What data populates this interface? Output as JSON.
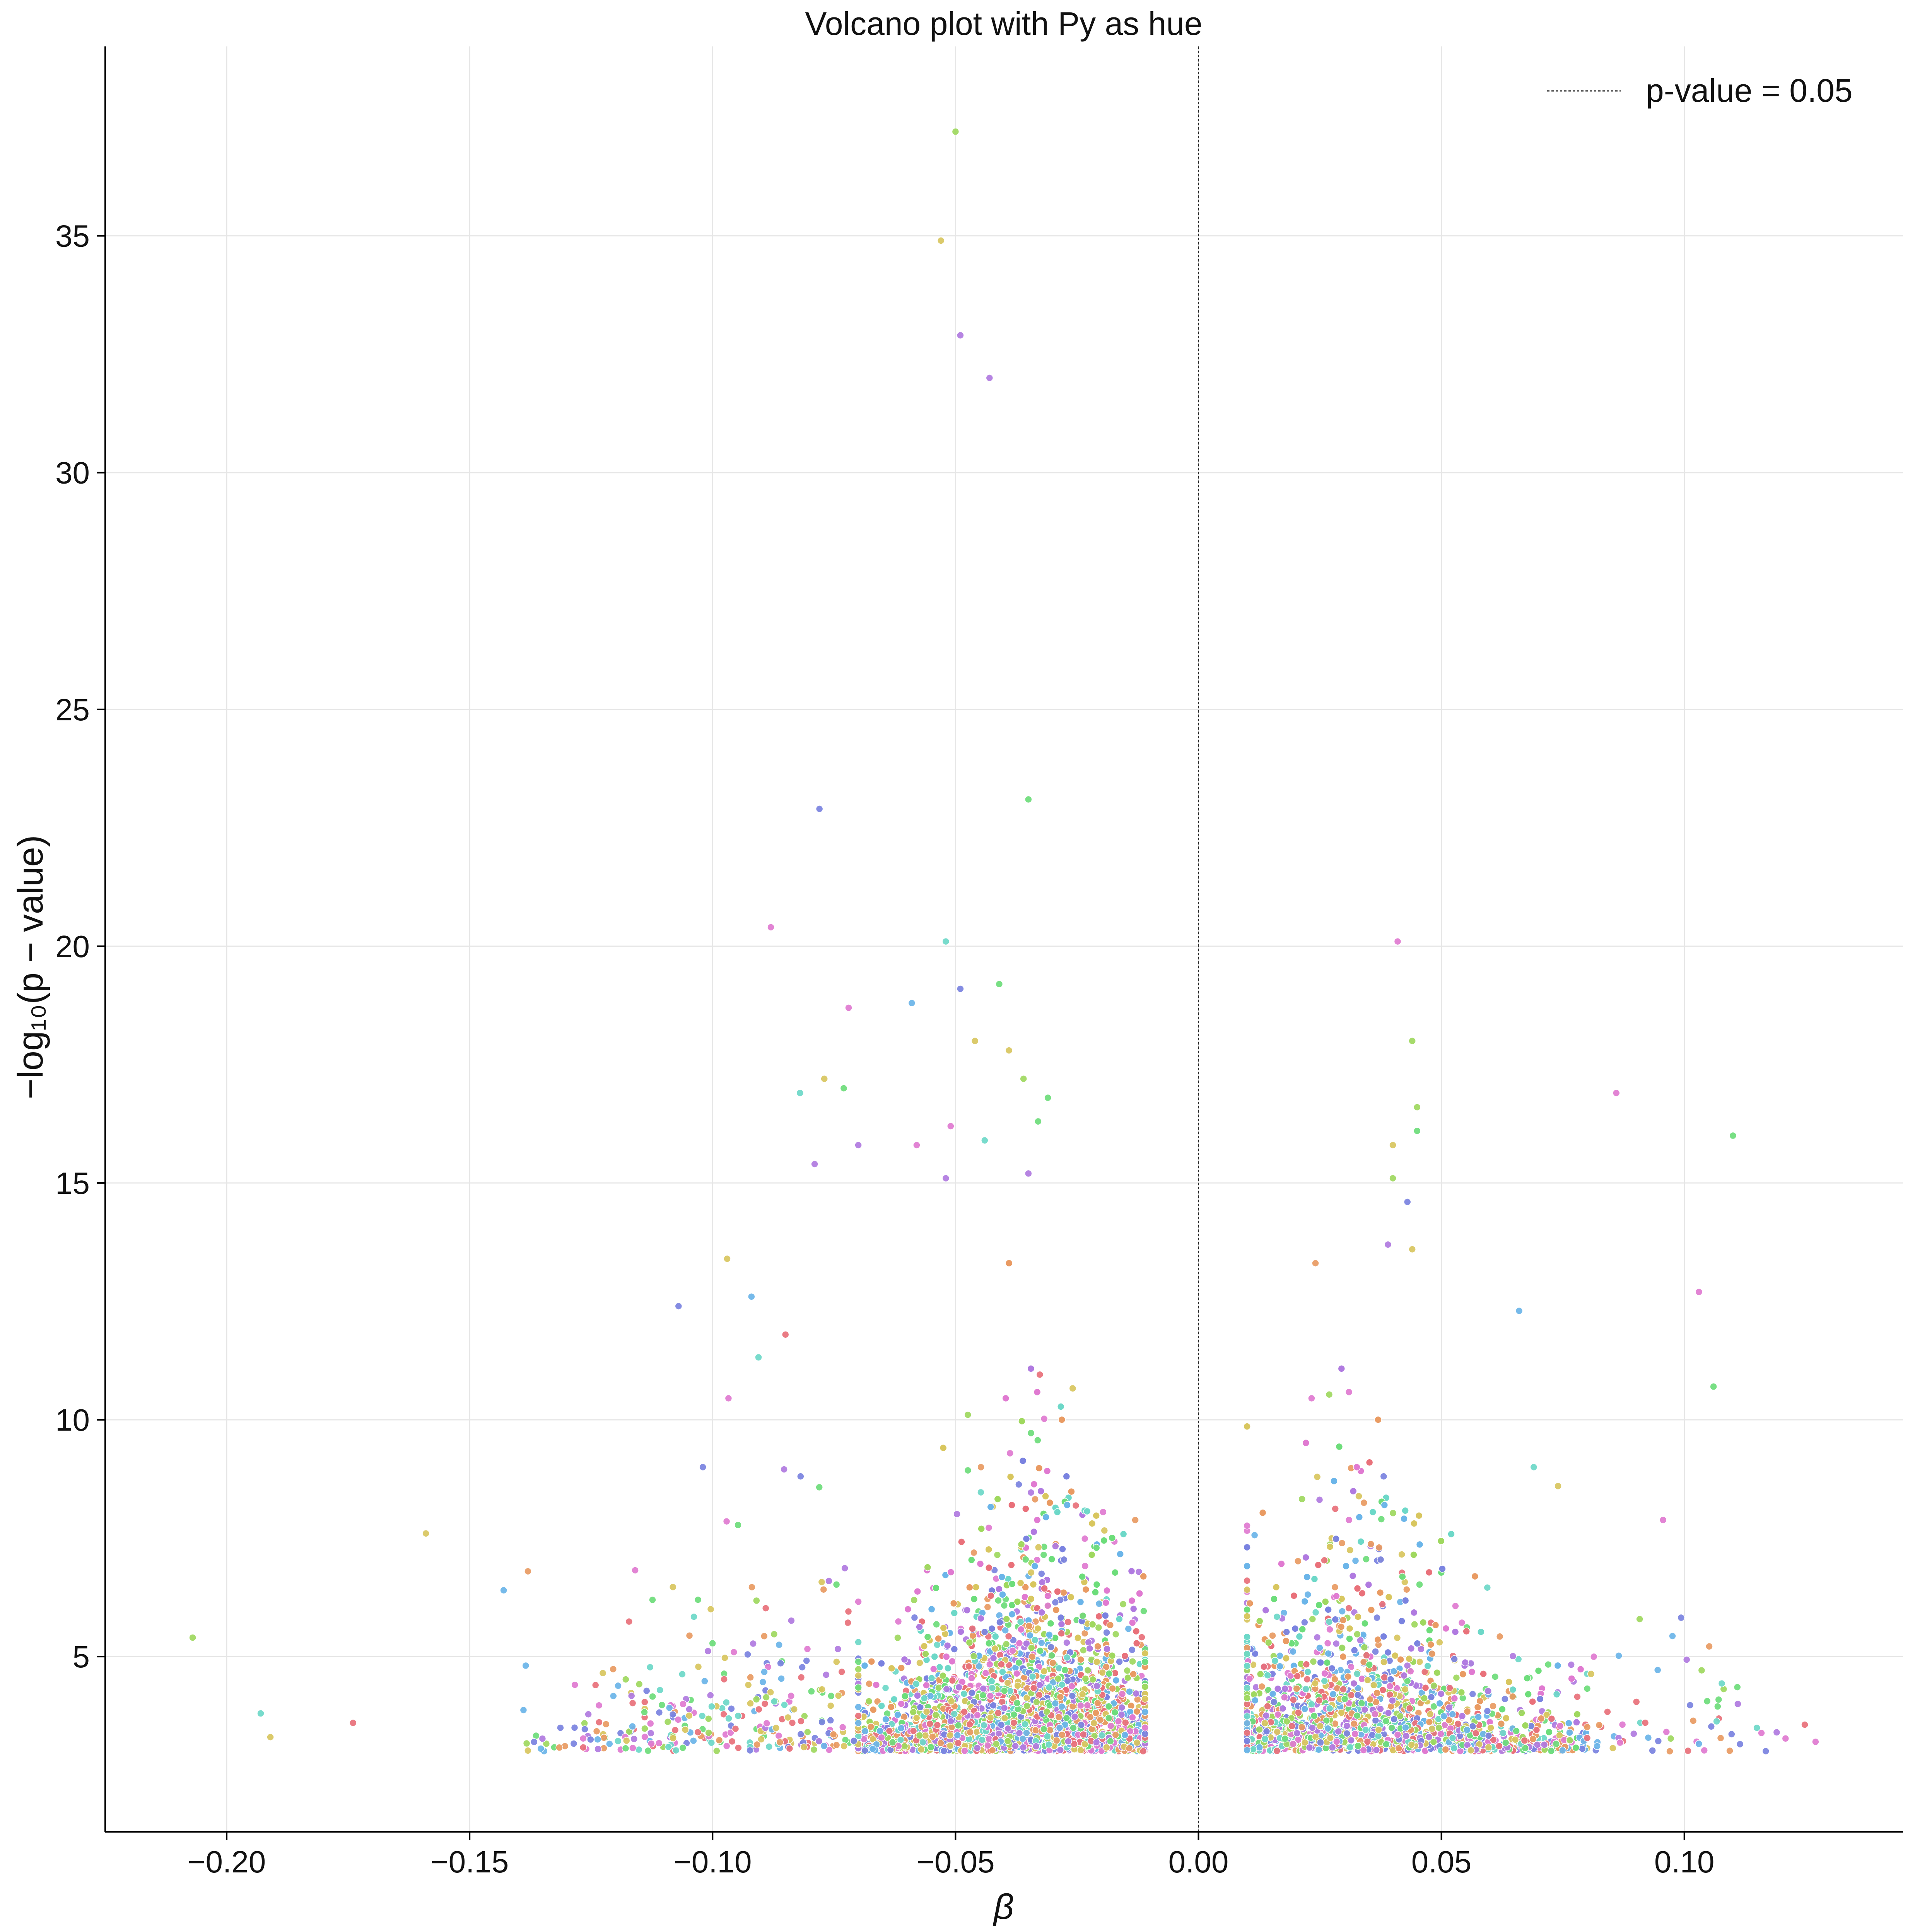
{
  "chart_data": {
    "type": "scatter",
    "title": "Volcano plot with Py as hue",
    "xlabel": "β",
    "ylabel": "−log₁₀(p − value)",
    "xlim": [
      -0.225,
      0.145
    ],
    "ylim": [
      1.3,
      39.0
    ],
    "x_ticks": [
      -0.2,
      -0.15,
      -0.1,
      -0.05,
      0.0,
      0.05,
      0.1
    ],
    "x_tick_labels": [
      "−0.20",
      "−0.15",
      "−0.10",
      "−0.05",
      "0.00",
      "0.05",
      "0.10"
    ],
    "y_ticks": [
      5,
      10,
      15,
      20,
      25,
      30,
      35
    ],
    "y_tick_labels": [
      "5",
      "10",
      "15",
      "20",
      "25",
      "30",
      "35"
    ],
    "grid": true,
    "legend": {
      "position": "top-right",
      "entries": [
        {
          "label": "p-value = 0.05",
          "style": "dotted-line"
        }
      ]
    },
    "reference_line": {
      "orientation": "vertical",
      "x": 0.0,
      "style": "dotted"
    },
    "hue_palette": [
      "#e8707a",
      "#e89a62",
      "#d8c65e",
      "#9ed85e",
      "#6ddc7a",
      "#6dd8c8",
      "#6ab4e8",
      "#7a82e0",
      "#b07ae0",
      "#e07ad0"
    ],
    "highlighted_points": [
      [
        -0.05,
        37.2
      ],
      [
        -0.053,
        34.9
      ],
      [
        -0.049,
        32.9
      ],
      [
        -0.043,
        32.0
      ],
      [
        -0.035,
        23.1
      ],
      [
        -0.078,
        22.9
      ],
      [
        -0.088,
        20.4
      ],
      [
        -0.052,
        20.1
      ],
      [
        -0.041,
        19.2
      ],
      [
        -0.049,
        19.1
      ],
      [
        -0.059,
        18.8
      ],
      [
        -0.072,
        18.7
      ],
      [
        -0.046,
        18.0
      ],
      [
        -0.039,
        17.8
      ],
      [
        -0.077,
        17.2
      ],
      [
        -0.082,
        16.9
      ],
      [
        -0.073,
        17.0
      ],
      [
        -0.033,
        16.3
      ],
      [
        -0.036,
        17.2
      ],
      [
        -0.031,
        16.8
      ],
      [
        -0.051,
        16.2
      ],
      [
        -0.044,
        15.9
      ],
      [
        -0.079,
        15.4
      ],
      [
        -0.07,
        15.8
      ],
      [
        -0.058,
        15.8
      ],
      [
        -0.052,
        15.1
      ],
      [
        -0.035,
        15.2
      ],
      [
        -0.159,
        7.6
      ],
      [
        -0.207,
        5.4
      ],
      [
        -0.193,
        3.8
      ],
      [
        -0.191,
        3.3
      ],
      [
        -0.174,
        3.6
      ],
      [
        -0.138,
        6.8
      ],
      [
        -0.143,
        6.4
      ],
      [
        -0.107,
        12.4
      ],
      [
        -0.097,
        13.4
      ],
      [
        -0.092,
        12.6
      ],
      [
        -0.102,
        9.0
      ],
      [
        -0.103,
        6.2
      ],
      [
        -0.085,
        11.8
      ],
      [
        0.041,
        20.1
      ],
      [
        0.044,
        18.0
      ],
      [
        0.086,
        16.9
      ],
      [
        0.11,
        16.0
      ],
      [
        0.04,
        15.8
      ],
      [
        0.04,
        15.1
      ],
      [
        0.045,
        16.6
      ],
      [
        0.045,
        16.1
      ],
      [
        0.043,
        14.6
      ],
      [
        0.044,
        13.6
      ],
      [
        0.039,
        13.7
      ],
      [
        0.066,
        12.3
      ],
      [
        0.103,
        12.7
      ],
      [
        0.106,
        10.7
      ],
      [
        0.069,
        9.0
      ],
      [
        0.074,
        8.6
      ],
      [
        0.127,
        3.2
      ],
      [
        0.119,
        3.4
      ],
      [
        0.111,
        4.0
      ],
      [
        0.097,
        3.0
      ]
    ],
    "clusters": [
      {
        "name": "",
        "x_range": [
          -0.07,
          -0.011
        ],
        "center_x": -0.034,
        "y_floor": 3.0,
        "n_points": 5200
      },
      {
        "name": "",
        "x_range": [
          -0.14,
          -0.07
        ],
        "center_x": -0.09,
        "y_floor": 3.0,
        "n_points": 320
      },
      {
        "name": "",
        "x_range": [
          0.01,
          0.08
        ],
        "center_x": 0.03,
        "y_floor": 3.0,
        "n_points": 2600
      },
      {
        "name": "",
        "x_range": [
          0.08,
          0.125
        ],
        "center_x": 0.095,
        "y_floor": 3.0,
        "n_points": 60
      }
    ]
  }
}
